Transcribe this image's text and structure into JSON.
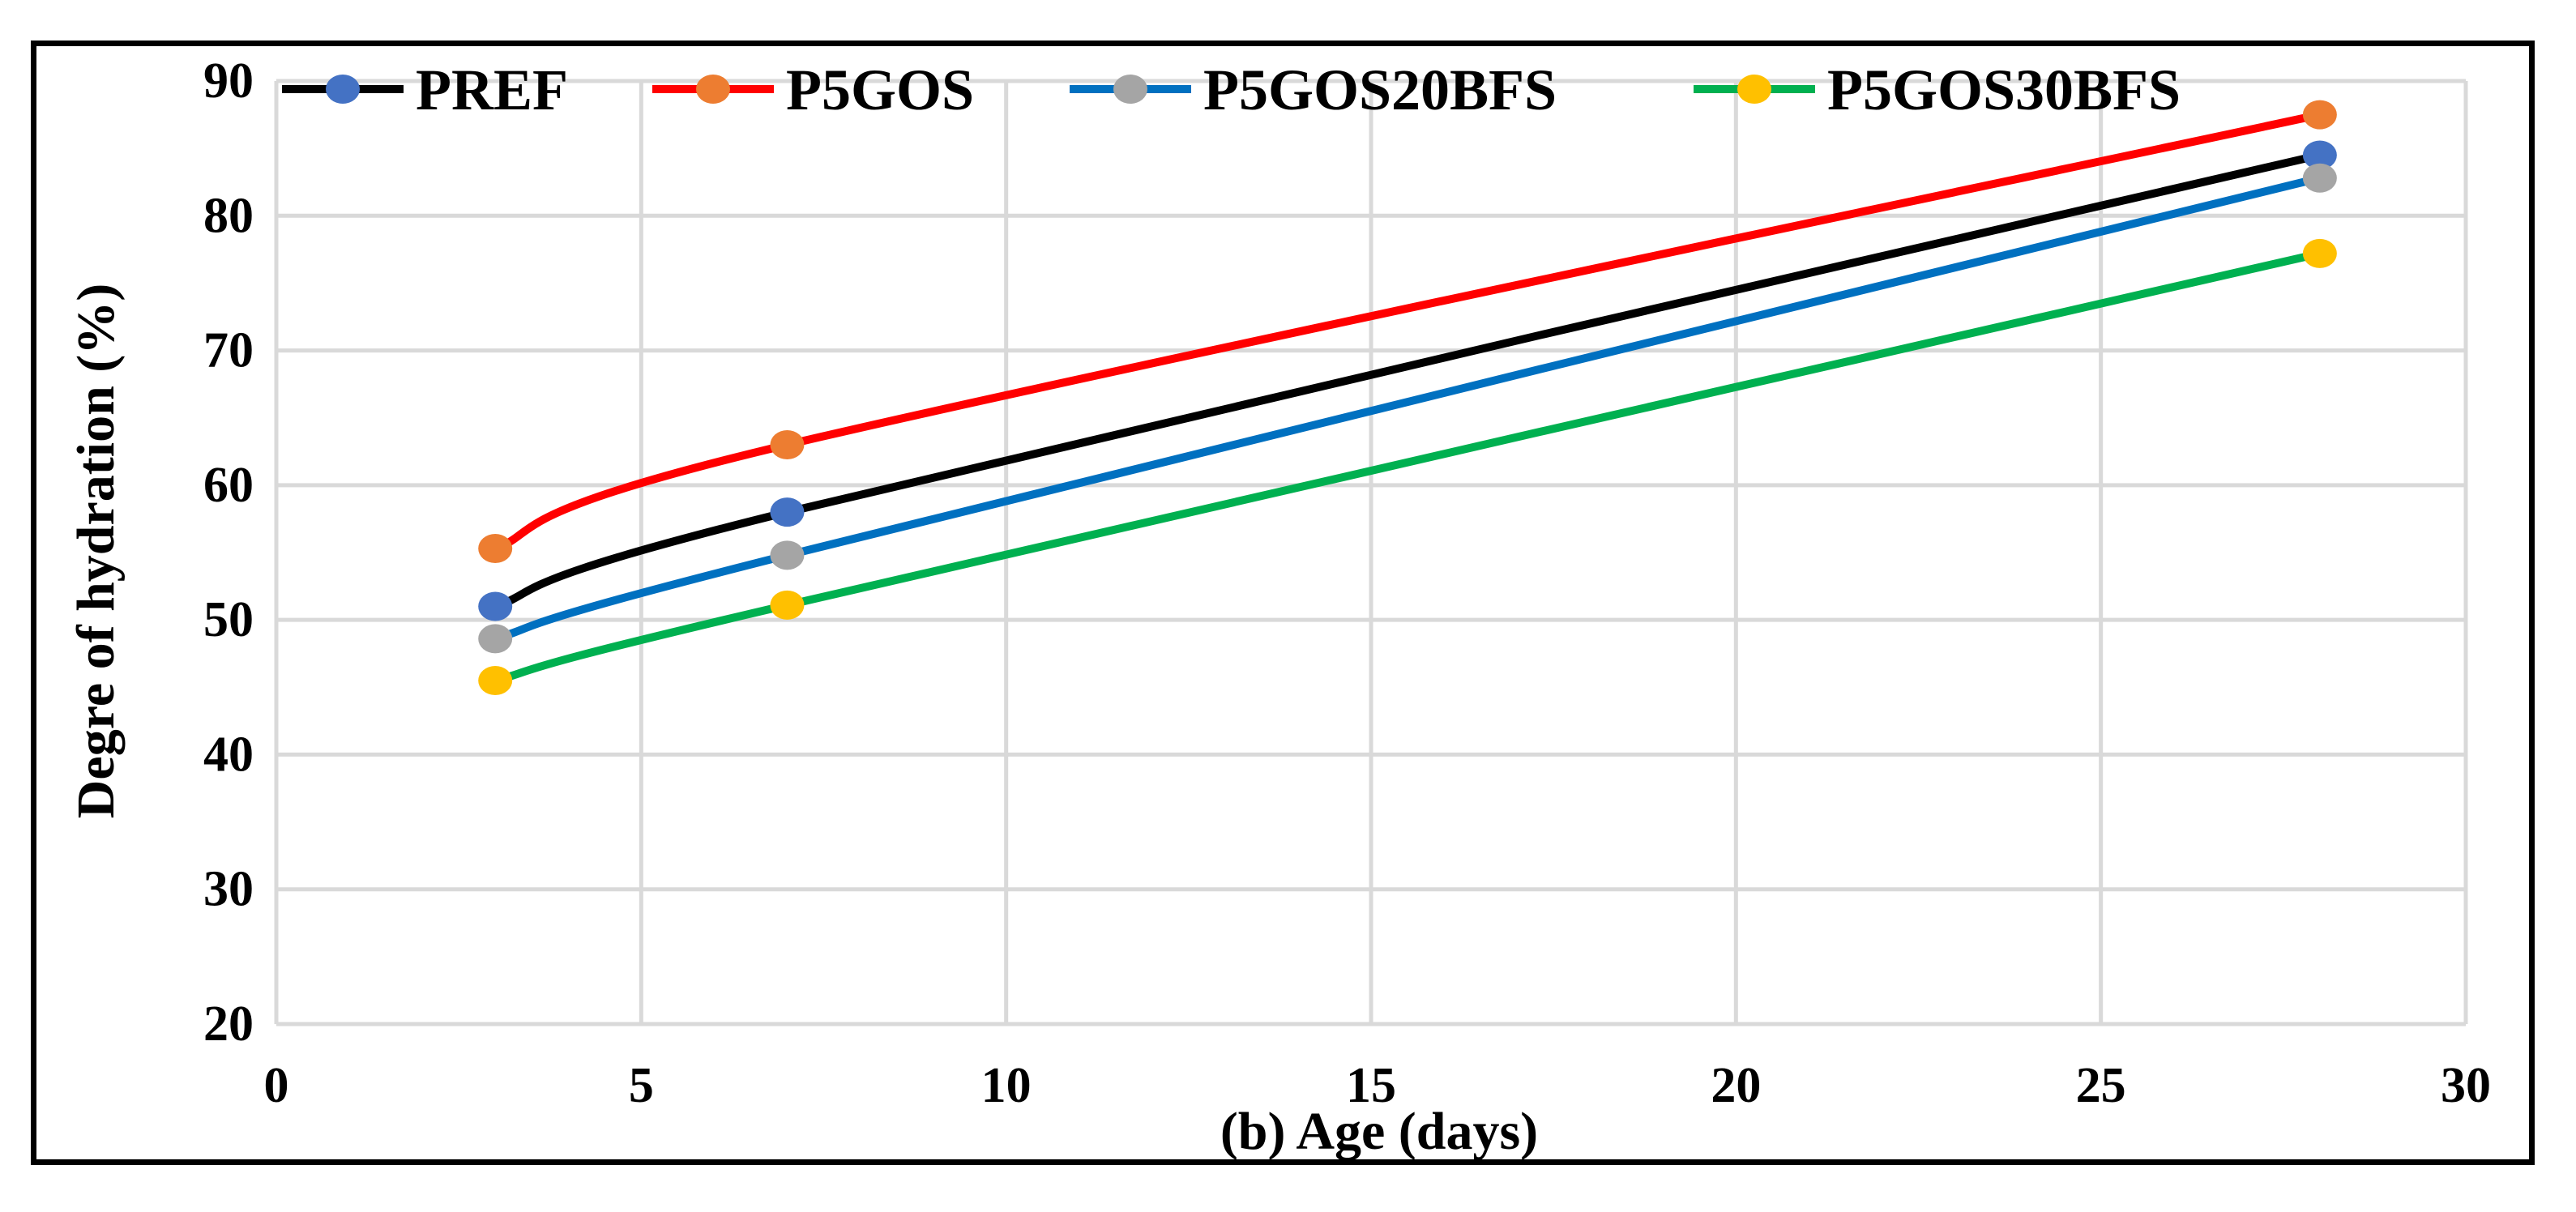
{
  "chart_data": {
    "type": "line",
    "title": "",
    "xlabel": "(b) Age (days)",
    "ylabel": "Degre of hydration (%)",
    "xlim": [
      0,
      30
    ],
    "ylim": [
      20,
      90
    ],
    "xticks": [
      0,
      5,
      10,
      15,
      20,
      25,
      30
    ],
    "yticks": [
      20,
      30,
      40,
      50,
      60,
      70,
      80,
      90
    ],
    "grid": true,
    "smooth": true,
    "legend_position": "top",
    "x": [
      3,
      7,
      28
    ],
    "series": [
      {
        "name": "PREF",
        "values": [
          51.0,
          58.0,
          84.5
        ],
        "line_color": "#000000",
        "marker_color": "#4472C4"
      },
      {
        "name": "P5GOS",
        "values": [
          55.3,
          63.0,
          87.5
        ],
        "line_color": "#FF0000",
        "marker_color": "#ED7D31"
      },
      {
        "name": "P5GOS20BFS",
        "values": [
          48.6,
          54.8,
          82.8
        ],
        "line_color": "#0070C0",
        "marker_color": "#A5A5A5"
      },
      {
        "name": "P5GOS30BFS",
        "values": [
          45.5,
          51.1,
          77.2
        ],
        "line_color": "#00B050",
        "marker_color": "#FFC000"
      }
    ]
  }
}
